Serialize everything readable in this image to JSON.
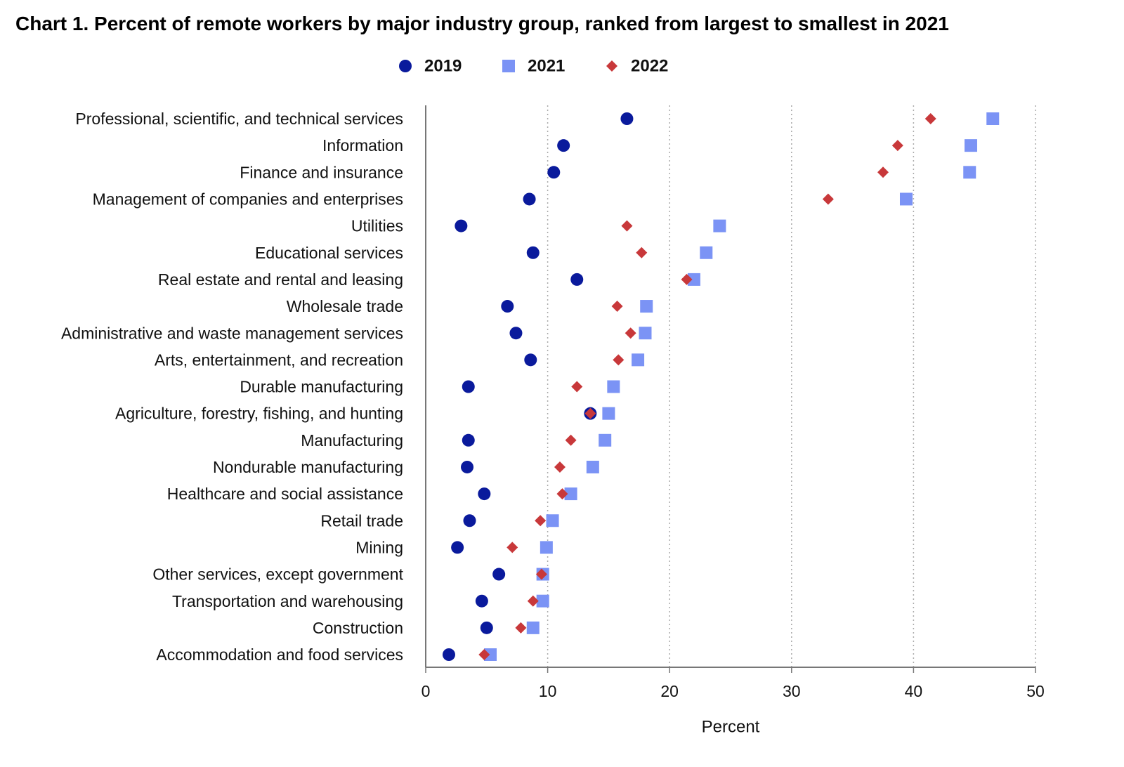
{
  "chart_data": {
    "type": "dot",
    "title": "Chart 1. Percent of remote workers by major industry group, ranked from largest to smallest in 2021",
    "x_label": "Percent",
    "categories": [
      "Professional, scientific, and technical services",
      "Information",
      "Finance and insurance",
      "Management of companies and enterprises",
      "Utilities",
      "Educational services",
      "Real estate and rental and leasing",
      "Wholesale trade",
      "Administrative and waste management services",
      "Arts, entertainment, and recreation",
      "Durable manufacturing",
      "Agriculture, forestry, fishing, and hunting",
      "Manufacturing",
      "Nondurable manufacturing",
      "Healthcare and social assistance",
      "Retail trade",
      "Mining",
      "Other services, except government",
      "Transportation and warehousing",
      "Construction",
      "Accommodation and food services"
    ],
    "series": [
      {
        "name": "2019",
        "color": "#0a1a9c",
        "marker": "circle",
        "values": [
          16.5,
          11.3,
          10.5,
          8.5,
          2.9,
          8.8,
          12.4,
          6.7,
          7.4,
          8.6,
          3.5,
          13.5,
          3.5,
          3.4,
          4.8,
          3.6,
          2.6,
          6.0,
          4.6,
          5.0,
          1.9
        ]
      },
      {
        "name": "2021",
        "color": "#7b93f5",
        "marker": "square",
        "values": [
          46.5,
          44.7,
          44.6,
          39.4,
          24.1,
          23.0,
          22.0,
          18.1,
          18.0,
          17.4,
          15.4,
          15.0,
          14.7,
          13.7,
          11.9,
          10.4,
          9.9,
          9.6,
          9.6,
          8.8,
          5.3
        ]
      },
      {
        "name": "2022",
        "color": "#c8383a",
        "marker": "diamond",
        "values": [
          41.4,
          38.7,
          37.5,
          33.0,
          16.5,
          17.7,
          21.4,
          15.7,
          16.8,
          15.8,
          12.4,
          13.5,
          11.9,
          11.0,
          11.2,
          9.4,
          7.1,
          9.5,
          8.8,
          7.8,
          4.8
        ]
      }
    ],
    "xlim": [
      0,
      50
    ],
    "xticks": [
      0,
      10,
      20,
      30,
      40,
      50
    ],
    "grid": true
  }
}
